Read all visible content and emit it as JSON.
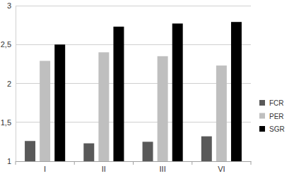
{
  "chart_data": {
    "type": "bar",
    "categories": [
      "I",
      "II",
      "III",
      "VI"
    ],
    "series": [
      {
        "name": "FCR",
        "color": "#595959",
        "values": [
          1.26,
          1.23,
          1.25,
          1.32
        ]
      },
      {
        "name": "PER",
        "color": "#bfbfbf",
        "values": [
          2.29,
          2.4,
          2.35,
          2.23
        ]
      },
      {
        "name": "SGR",
        "color": "#000000",
        "values": [
          2.5,
          2.73,
          2.77,
          2.79
        ]
      }
    ],
    "ylim": [
      1,
      3
    ],
    "yticks": [
      1,
      {
        "value": 1.5,
        "label": "1,5"
      },
      2,
      {
        "value": 2.5,
        "label": "2,5"
      },
      3
    ],
    "grid": true,
    "legend": "right"
  }
}
